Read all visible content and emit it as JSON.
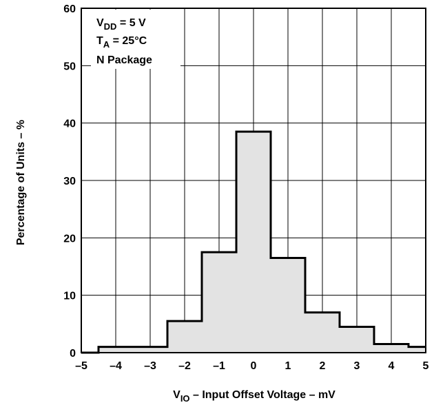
{
  "chart_data": {
    "type": "bar",
    "title": "",
    "xlabel": {
      "prefix": "V",
      "sub": "IO",
      "text": " – Input Offset Voltage – mV"
    },
    "ylabel": "Percentage of Units – %",
    "xlim": [
      -5,
      5
    ],
    "ylim": [
      0,
      60
    ],
    "x_ticks": [
      -5,
      -4,
      -3,
      -2,
      -1,
      0,
      1,
      2,
      3,
      4,
      5
    ],
    "x_tick_labels": [
      "–5",
      "–4",
      "–3",
      "–2",
      "–1",
      "0",
      "1",
      "2",
      "3",
      "4",
      "5"
    ],
    "y_ticks": [
      0,
      10,
      20,
      30,
      40,
      50,
      60
    ],
    "y_tick_labels": [
      "0",
      "10",
      "20",
      "30",
      "40",
      "50",
      "60"
    ],
    "grid": true,
    "bins": [
      {
        "x0": -5.0,
        "x1": -4.5,
        "value": 0
      },
      {
        "x0": -4.5,
        "x1": -2.5,
        "value": 1
      },
      {
        "x0": -2.5,
        "x1": -1.5,
        "value": 5.5
      },
      {
        "x0": -1.5,
        "x1": -0.5,
        "value": 17.5
      },
      {
        "x0": -0.5,
        "x1": 0.5,
        "value": 38.5
      },
      {
        "x0": 0.5,
        "x1": 1.5,
        "value": 16.5
      },
      {
        "x0": 1.5,
        "x1": 2.5,
        "value": 7
      },
      {
        "x0": 2.5,
        "x1": 3.5,
        "value": 4.5
      },
      {
        "x0": 3.5,
        "x1": 4.5,
        "value": 1.5
      },
      {
        "x0": 4.5,
        "x1": 5.0,
        "value": 1
      }
    ],
    "annotation": {
      "placement": "top-left",
      "lines": [
        {
          "prefix": "V",
          "sub": "DD",
          "text": " = 5 V"
        },
        {
          "prefix": "T",
          "sub": "A",
          "text": " = 25°C"
        },
        {
          "prefix": "N Package",
          "sub": "",
          "text": ""
        }
      ]
    },
    "colors": {
      "fill": "#e3e3e3",
      "outline": "#000000",
      "grid": "#000000"
    }
  }
}
